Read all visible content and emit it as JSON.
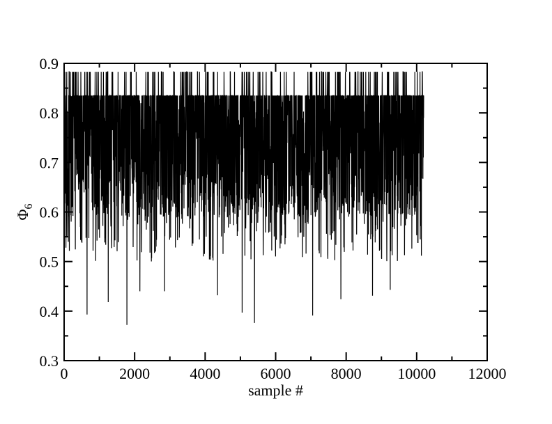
{
  "chart_data": {
    "type": "line",
    "title": "",
    "xlabel": "sample #",
    "ylabel_main": "Φ",
    "ylabel_sub": "6",
    "xlim": [
      0,
      12000
    ],
    "ylim": [
      0.3,
      0.9
    ],
    "x_ticks": [
      0,
      2000,
      4000,
      6000,
      8000,
      10000,
      12000
    ],
    "x_tick_labels": [
      "0",
      "2000",
      "4000",
      "6000",
      "8000",
      "10000",
      "12000"
    ],
    "y_ticks": [
      0.3,
      0.4,
      0.5,
      0.6,
      0.7,
      0.8,
      0.9
    ],
    "y_tick_labels": [
      "0.3",
      "0.4",
      "0.5",
      "0.6",
      "0.7",
      "0.8",
      "0.9"
    ],
    "x_minor_step": 1000,
    "y_minor_step": 0.05,
    "grid": false,
    "legend": "none",
    "line_color": "#000000",
    "series": [
      {
        "x_range": [
          0,
          10200
        ],
        "num_samples": 10200,
        "upper_levels": [
          0.835,
          0.883
        ],
        "typical_band": [
          0.59,
          0.835
        ],
        "min_dips": [
          {
            "x": 650,
            "y": 0.393
          },
          {
            "x": 1250,
            "y": 0.418
          },
          {
            "x": 1780,
            "y": 0.372
          },
          {
            "x": 2150,
            "y": 0.44
          },
          {
            "x": 2850,
            "y": 0.44
          },
          {
            "x": 4350,
            "y": 0.432
          },
          {
            "x": 5050,
            "y": 0.397
          },
          {
            "x": 5400,
            "y": 0.376
          },
          {
            "x": 7050,
            "y": 0.391
          },
          {
            "x": 7850,
            "y": 0.424
          },
          {
            "x": 8750,
            "y": 0.431
          },
          {
            "x": 9250,
            "y": 0.443
          }
        ]
      }
    ]
  }
}
